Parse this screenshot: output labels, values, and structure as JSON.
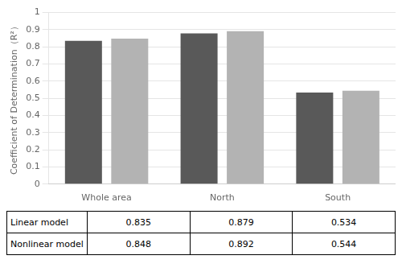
{
  "chart_data": {
    "type": "bar",
    "categories": [
      "Whole area",
      "North",
      "South"
    ],
    "series": [
      {
        "name": "Linear model",
        "color": "#595959",
        "values": [
          0.835,
          0.879,
          0.534
        ]
      },
      {
        "name": "Nonlinear model",
        "color": "#b3b3b3",
        "values": [
          0.848,
          0.892,
          0.544
        ]
      }
    ],
    "ylabel": "Coefficient of Determination（R²）",
    "ylim": [
      0,
      1
    ],
    "yticks": [
      0,
      0.1,
      0.2,
      0.3,
      0.4,
      0.5,
      0.6,
      0.7,
      0.8,
      0.9,
      1
    ],
    "grid": true
  }
}
